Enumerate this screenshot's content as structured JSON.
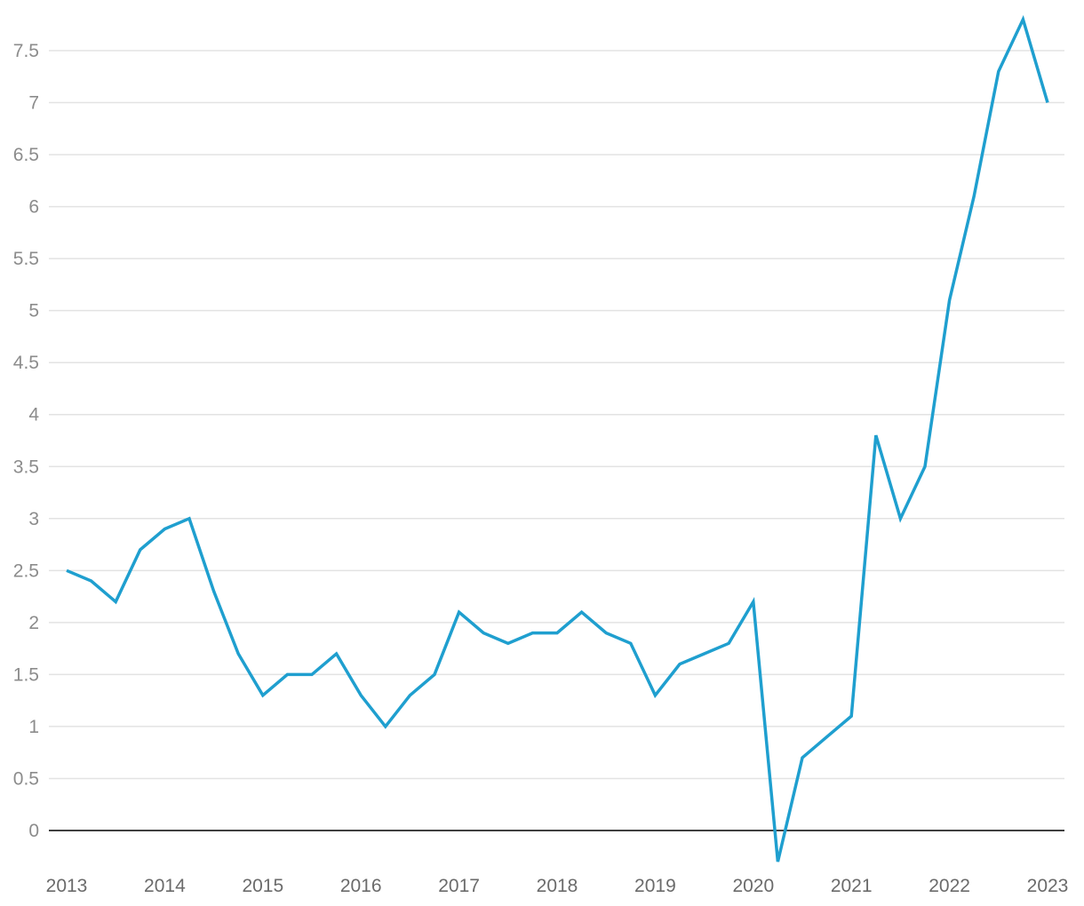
{
  "chart_data": {
    "type": "line",
    "title": "",
    "xlabel": "",
    "ylabel": "",
    "x_ticks": [
      "2013",
      "2014",
      "2015",
      "2016",
      "2017",
      "2018",
      "2019",
      "2020",
      "2021",
      "2022",
      "2023"
    ],
    "y_ticks": [
      "0",
      "0.5",
      "1",
      "1.5",
      "2",
      "2.5",
      "3",
      "3.5",
      "4",
      "4.5",
      "5",
      "5.5",
      "6",
      "6.5",
      "7",
      "7.5"
    ],
    "xlim": [
      2013,
      2023
    ],
    "ylim": [
      -0.3,
      7.8
    ],
    "grid": true,
    "colors": {
      "line": "#1f9fcf",
      "grid": "#e3e3e3",
      "zero_line": "#000000"
    },
    "series": [
      {
        "x": [
          2013,
          2013.25,
          2013.5,
          2013.75,
          2014,
          2014.25,
          2014.5,
          2014.75,
          2015,
          2015.25,
          2015.5,
          2015.75,
          2016,
          2016.25,
          2016.5,
          2016.75,
          2017,
          2017.25,
          2017.5,
          2017.75,
          2018,
          2018.25,
          2018.5,
          2018.75,
          2019,
          2019.25,
          2019.5,
          2019.75,
          2020,
          2020.25,
          2020.5,
          2020.75,
          2021,
          2021.25,
          2021.5,
          2021.75,
          2022,
          2022.25,
          2022.5,
          2022.75,
          2023
        ],
        "values": [
          2.5,
          2.4,
          2.2,
          2.7,
          2.9,
          3.0,
          2.3,
          1.7,
          1.3,
          1.5,
          1.5,
          1.7,
          1.3,
          1.0,
          1.3,
          1.5,
          2.1,
          1.9,
          1.8,
          1.9,
          1.9,
          2.1,
          1.9,
          1.8,
          1.3,
          1.6,
          1.7,
          1.8,
          2.2,
          -0.3,
          0.7,
          0.9,
          1.1,
          3.8,
          3.0,
          3.5,
          5.1,
          6.1,
          7.3,
          7.8,
          7.0
        ]
      }
    ]
  }
}
